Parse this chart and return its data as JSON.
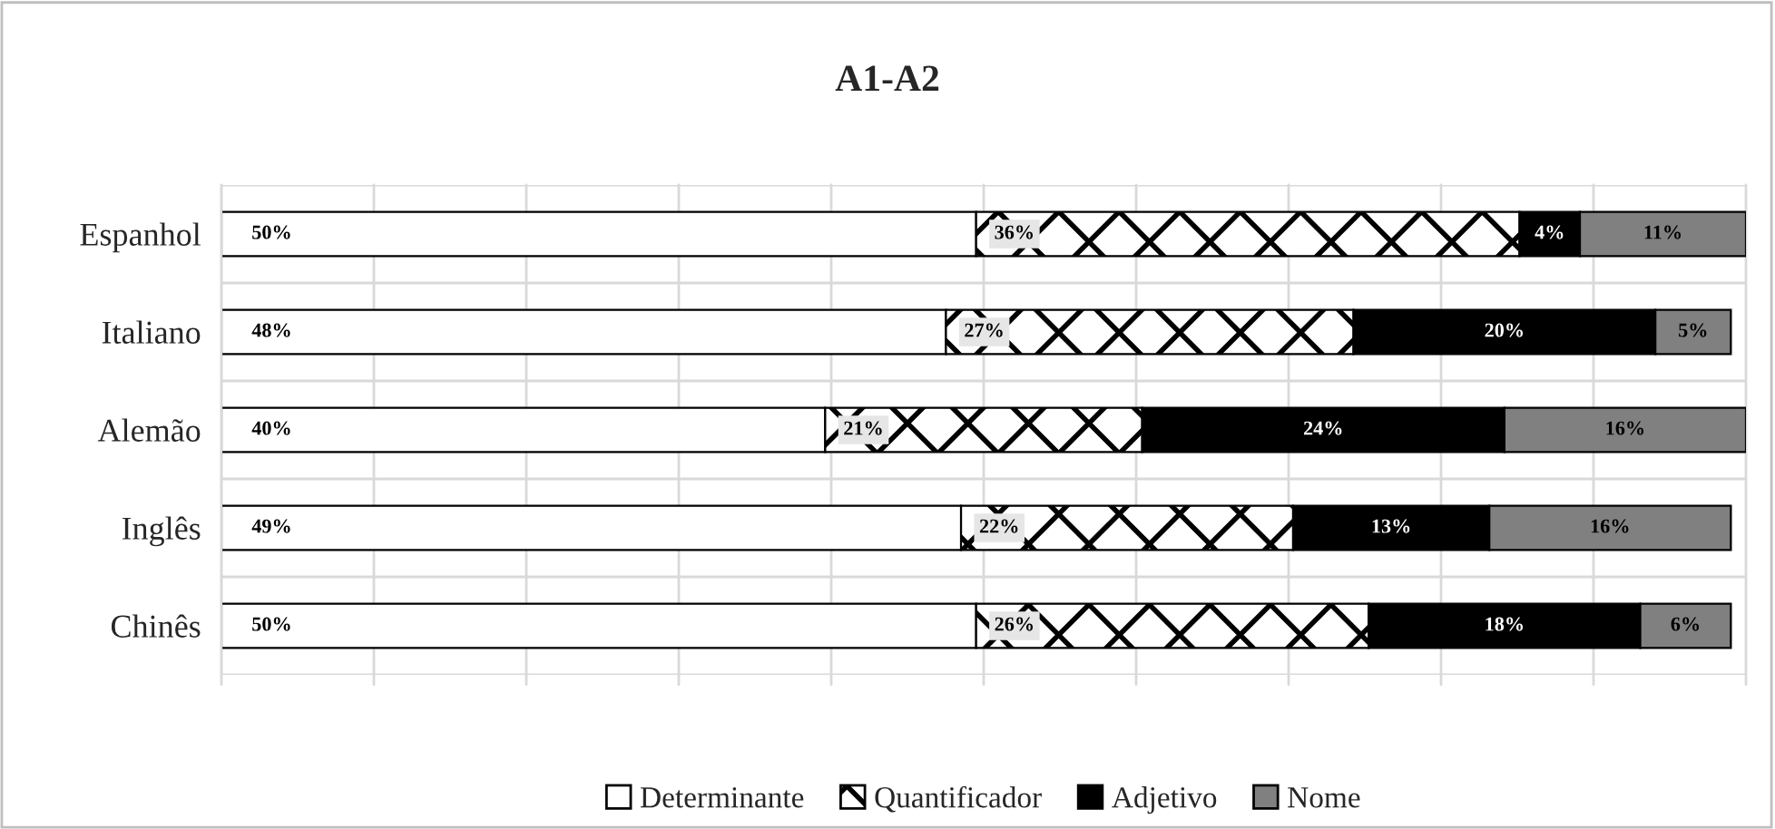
{
  "chart_data": {
    "type": "bar",
    "title": "A1-A2",
    "orientation": "horizontal",
    "stacked": true,
    "categories": [
      "Espanhol",
      "Italiano",
      "Alemão",
      "Inglês",
      "Chinês"
    ],
    "series": [
      {
        "name": "Determinante",
        "color": "#ffffff",
        "values": [
          50,
          48,
          40,
          49,
          50
        ],
        "value_labels": [
          "50%",
          "48%",
          "40%",
          "49%",
          "50%"
        ]
      },
      {
        "name": "Quantificador",
        "color": "#000000",
        "values": [
          36,
          27,
          21,
          22,
          26
        ],
        "value_labels": [
          "36%",
          "27%",
          "21%",
          "22%",
          "26%"
        ]
      },
      {
        "name": "Adjetivo",
        "color": "#000000",
        "values": [
          4,
          20,
          24,
          13,
          18
        ],
        "value_labels": [
          "4%",
          "20%",
          "24%",
          "13%",
          "18%"
        ]
      },
      {
        "name": "Nome",
        "color": "#808080",
        "values": [
          11,
          5,
          16,
          16,
          6
        ],
        "value_labels": [
          "11%",
          "5%",
          "16%",
          "16%",
          "6%"
        ]
      }
    ],
    "grid": true,
    "legend": "bottom"
  }
}
